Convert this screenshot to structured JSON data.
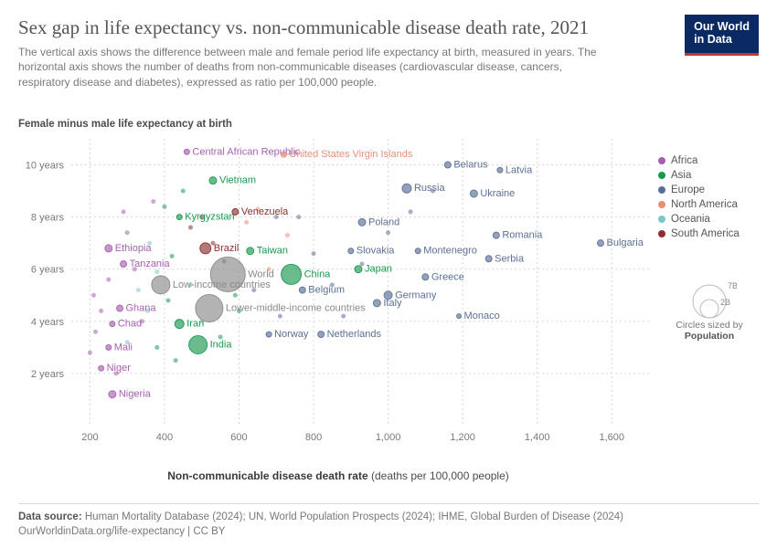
{
  "title": "Sex gap in life expectancy vs. non-communicable disease death rate, 2021",
  "subtitle": "The vertical axis shows the difference between male and female period life expectancy at birth, measured in years. The horizontal axis shows the number of deaths from non-communicable diseases (cardiovascular disease, cancers, respiratory disease and diabetes), expressed as ratio per 100,000 people.",
  "logo_line1": "Our World",
  "logo_line2": "in Data",
  "chart": {
    "type": "scatter",
    "y_axis_title": "Female minus male life expectancy at birth",
    "x_axis_title_bold": "Non-communicable disease death rate",
    "x_axis_title_rest": " (deaths per 100,000 people)",
    "xlim": [
      150,
      1700
    ],
    "ylim": [
      0,
      11
    ],
    "xticks": [
      200,
      400,
      600,
      800,
      1000,
      1200,
      1400,
      1600
    ],
    "xtick_labels": [
      "200",
      "400",
      "600",
      "800",
      "1,000",
      "1,200",
      "1,400",
      "1,600"
    ],
    "yticks": [
      2,
      4,
      6,
      8,
      10
    ],
    "ytick_labels": [
      "2 years",
      "4 years",
      "6 years",
      "8 years",
      "10 years"
    ],
    "grid_color": "#d6d6d6",
    "background": "#ffffff",
    "regions": {
      "Africa": "#a65fb0",
      "Asia": "#1a9850",
      "Europe": "#5b6f96",
      "North America": "#e58f79",
      "Oceania": "#7fc6c6",
      "South America": "#8b2f2f"
    },
    "entity_color": "#8a8a8a",
    "size_label1": "7B",
    "size_label2": "2B",
    "size_caption1": "Circles sized by",
    "size_caption2": "Population",
    "labeled_points": [
      {
        "label": "Central African Republic",
        "x": 460,
        "y": 10.5,
        "r": 3,
        "color": "#a65fb0",
        "anchor": "start"
      },
      {
        "label": "United States Virgin Islands",
        "x": 720,
        "y": 10.4,
        "r": 3,
        "color": "#e58f79",
        "anchor": "start"
      },
      {
        "label": "Vietnam",
        "x": 530,
        "y": 9.4,
        "r": 4,
        "color": "#1a9850",
        "anchor": "start"
      },
      {
        "label": "Belarus",
        "x": 1160,
        "y": 10.0,
        "r": 3.5,
        "color": "#5b6f96",
        "anchor": "start"
      },
      {
        "label": "Latvia",
        "x": 1300,
        "y": 9.8,
        "r": 3,
        "color": "#5b6f96",
        "anchor": "start"
      },
      {
        "label": "Russia",
        "x": 1050,
        "y": 9.1,
        "r": 5,
        "color": "#5b6f96",
        "anchor": "start"
      },
      {
        "label": "Ukraine",
        "x": 1230,
        "y": 8.9,
        "r": 4,
        "color": "#5b6f96",
        "anchor": "start"
      },
      {
        "label": "Kyrgyzstan",
        "x": 440,
        "y": 8.0,
        "r": 3,
        "color": "#1a9850",
        "anchor": "start"
      },
      {
        "label": "Venezuela",
        "x": 590,
        "y": 8.2,
        "r": 3.5,
        "color": "#8b2f2f",
        "anchor": "start"
      },
      {
        "label": "Poland",
        "x": 930,
        "y": 7.8,
        "r": 4,
        "color": "#5b6f96",
        "anchor": "start"
      },
      {
        "label": "Romania",
        "x": 1290,
        "y": 7.3,
        "r": 3.5,
        "color": "#5b6f96",
        "anchor": "start"
      },
      {
        "label": "Bulgaria",
        "x": 1570,
        "y": 7.0,
        "r": 3.5,
        "color": "#5b6f96",
        "anchor": "start"
      },
      {
        "label": "Ethiopia",
        "x": 250,
        "y": 6.8,
        "r": 4,
        "color": "#a65fb0",
        "anchor": "start"
      },
      {
        "label": "Brazil",
        "x": 510,
        "y": 6.8,
        "r": 6,
        "color": "#8b2f2f",
        "anchor": "start"
      },
      {
        "label": "Taiwan",
        "x": 630,
        "y": 6.7,
        "r": 4,
        "color": "#1a9850",
        "anchor": "start"
      },
      {
        "label": "Slovakia",
        "x": 900,
        "y": 6.7,
        "r": 3,
        "color": "#5b6f96",
        "anchor": "start"
      },
      {
        "label": "Montenegro",
        "x": 1080,
        "y": 6.7,
        "r": 3,
        "color": "#5b6f96",
        "anchor": "start"
      },
      {
        "label": "Serbia",
        "x": 1270,
        "y": 6.4,
        "r": 3.5,
        "color": "#5b6f96",
        "anchor": "start"
      },
      {
        "label": "Tanzania",
        "x": 290,
        "y": 6.2,
        "r": 3.5,
        "color": "#a65fb0",
        "anchor": "start"
      },
      {
        "label": "World",
        "x": 570,
        "y": 5.8,
        "r": 19,
        "color": "#8a8a8a",
        "anchor": "start"
      },
      {
        "label": "China",
        "x": 740,
        "y": 5.8,
        "r": 11,
        "color": "#1a9850",
        "anchor": "start"
      },
      {
        "label": "Japan",
        "x": 920,
        "y": 6.0,
        "r": 4,
        "color": "#1a9850",
        "anchor": "start"
      },
      {
        "label": "Greece",
        "x": 1100,
        "y": 5.7,
        "r": 3.5,
        "color": "#5b6f96",
        "anchor": "start"
      },
      {
        "label": "Low-income countries",
        "x": 390,
        "y": 5.4,
        "r": 10,
        "color": "#8a8a8a",
        "anchor": "start"
      },
      {
        "label": "Belgium",
        "x": 770,
        "y": 5.2,
        "r": 3.5,
        "color": "#5b6f96",
        "anchor": "start"
      },
      {
        "label": "Germany",
        "x": 1000,
        "y": 5.0,
        "r": 4.5,
        "color": "#5b6f96",
        "anchor": "start"
      },
      {
        "label": "Ghana",
        "x": 280,
        "y": 4.5,
        "r": 3.5,
        "color": "#a65fb0",
        "anchor": "start"
      },
      {
        "label": "Lower-middle-income countries",
        "x": 520,
        "y": 4.5,
        "r": 15,
        "color": "#8a8a8a",
        "anchor": "start"
      },
      {
        "label": "Italy",
        "x": 970,
        "y": 4.7,
        "r": 4,
        "color": "#5b6f96",
        "anchor": "start"
      },
      {
        "label": "Monaco",
        "x": 1190,
        "y": 4.2,
        "r": 2.5,
        "color": "#5b6f96",
        "anchor": "start"
      },
      {
        "label": "Chad",
        "x": 260,
        "y": 3.9,
        "r": 3,
        "color": "#a65fb0",
        "anchor": "start"
      },
      {
        "label": "Iran",
        "x": 440,
        "y": 3.9,
        "r": 5,
        "color": "#1a9850",
        "anchor": "start"
      },
      {
        "label": "India",
        "x": 490,
        "y": 3.1,
        "r": 10,
        "color": "#1a9850",
        "anchor": "start"
      },
      {
        "label": "Norway",
        "x": 680,
        "y": 3.5,
        "r": 3,
        "color": "#5b6f96",
        "anchor": "start"
      },
      {
        "label": "Netherlands",
        "x": 820,
        "y": 3.5,
        "r": 3.5,
        "color": "#5b6f96",
        "anchor": "start"
      },
      {
        "label": "Mali",
        "x": 250,
        "y": 3.0,
        "r": 3,
        "color": "#a65fb0",
        "anchor": "start"
      },
      {
        "label": "Niger",
        "x": 230,
        "y": 2.2,
        "r": 3,
        "color": "#a65fb0",
        "anchor": "start"
      },
      {
        "label": "Nigeria",
        "x": 260,
        "y": 1.2,
        "r": 4,
        "color": "#a65fb0",
        "anchor": "start"
      }
    ],
    "background_points": [
      {
        "x": 210,
        "y": 5.0,
        "r": 2.5,
        "c": "#a65fb0"
      },
      {
        "x": 230,
        "y": 4.4,
        "r": 2.5,
        "c": "#a65fb0"
      },
      {
        "x": 250,
        "y": 5.6,
        "r": 2.5,
        "c": "#a65fb0"
      },
      {
        "x": 300,
        "y": 7.4,
        "r": 2.5,
        "c": "#a65fb0"
      },
      {
        "x": 320,
        "y": 6.0,
        "r": 2.5,
        "c": "#a65fb0"
      },
      {
        "x": 340,
        "y": 4.0,
        "r": 2.5,
        "c": "#a65fb0"
      },
      {
        "x": 360,
        "y": 7.0,
        "r": 2.5,
        "c": "#7fc6c6"
      },
      {
        "x": 380,
        "y": 5.9,
        "r": 2.5,
        "c": "#7fc6c6"
      },
      {
        "x": 400,
        "y": 8.4,
        "r": 2.5,
        "c": "#1a9850"
      },
      {
        "x": 420,
        "y": 6.5,
        "r": 2.5,
        "c": "#1a9850"
      },
      {
        "x": 450,
        "y": 9.0,
        "r": 2.5,
        "c": "#1a9850"
      },
      {
        "x": 470,
        "y": 7.6,
        "r": 2.5,
        "c": "#8b2f2f"
      },
      {
        "x": 500,
        "y": 8.0,
        "r": 2.5,
        "c": "#8b2f2f"
      },
      {
        "x": 530,
        "y": 7.0,
        "r": 2.5,
        "c": "#8b2f2f"
      },
      {
        "x": 560,
        "y": 6.3,
        "r": 2.5,
        "c": "#1a9850"
      },
      {
        "x": 590,
        "y": 5.0,
        "r": 2.5,
        "c": "#1a9850"
      },
      {
        "x": 620,
        "y": 7.8,
        "r": 2.5,
        "c": "#e58f79"
      },
      {
        "x": 650,
        "y": 8.3,
        "r": 2.5,
        "c": "#e58f79"
      },
      {
        "x": 680,
        "y": 6.0,
        "r": 2.5,
        "c": "#e58f79"
      },
      {
        "x": 700,
        "y": 8.0,
        "r": 2.5,
        "c": "#5b6f96"
      },
      {
        "x": 730,
        "y": 7.3,
        "r": 2.5,
        "c": "#e58f79"
      },
      {
        "x": 760,
        "y": 8.0,
        "r": 2.5,
        "c": "#5b6f96"
      },
      {
        "x": 800,
        "y": 6.6,
        "r": 2.5,
        "c": "#5b6f96"
      },
      {
        "x": 850,
        "y": 5.4,
        "r": 2.5,
        "c": "#5b6f96"
      },
      {
        "x": 880,
        "y": 4.2,
        "r": 2.5,
        "c": "#5b6f96"
      },
      {
        "x": 930,
        "y": 6.2,
        "r": 2.5,
        "c": "#5b6f96"
      },
      {
        "x": 1000,
        "y": 7.4,
        "r": 2.5,
        "c": "#5b6f96"
      },
      {
        "x": 1060,
        "y": 8.2,
        "r": 2.5,
        "c": "#5b6f96"
      },
      {
        "x": 1120,
        "y": 9.0,
        "r": 2.5,
        "c": "#5b6f96"
      },
      {
        "x": 200,
        "y": 2.8,
        "r": 2.5,
        "c": "#a65fb0"
      },
      {
        "x": 215,
        "y": 3.6,
        "r": 2.5,
        "c": "#a65fb0"
      },
      {
        "x": 270,
        "y": 2.0,
        "r": 2.5,
        "c": "#a65fb0"
      },
      {
        "x": 300,
        "y": 3.2,
        "r": 2.5,
        "c": "#7fc6c6"
      },
      {
        "x": 330,
        "y": 5.2,
        "r": 2.5,
        "c": "#7fc6c6"
      },
      {
        "x": 355,
        "y": 4.4,
        "r": 2.5,
        "c": "#7fc6c6"
      },
      {
        "x": 380,
        "y": 3.0,
        "r": 2.5,
        "c": "#1a9850"
      },
      {
        "x": 410,
        "y": 4.8,
        "r": 2.5,
        "c": "#1a9850"
      },
      {
        "x": 430,
        "y": 2.5,
        "r": 2.5,
        "c": "#1a9850"
      },
      {
        "x": 470,
        "y": 5.4,
        "r": 2.5,
        "c": "#7fc6c6"
      },
      {
        "x": 500,
        "y": 4.0,
        "r": 2.5,
        "c": "#7fc6c6"
      },
      {
        "x": 550,
        "y": 3.4,
        "r": 2.5,
        "c": "#1a9850"
      },
      {
        "x": 600,
        "y": 4.4,
        "r": 2.5,
        "c": "#1a9850"
      },
      {
        "x": 640,
        "y": 5.2,
        "r": 2.5,
        "c": "#5b6f96"
      },
      {
        "x": 710,
        "y": 4.2,
        "r": 2.5,
        "c": "#5b6f96"
      },
      {
        "x": 290,
        "y": 8.2,
        "r": 2.5,
        "c": "#a65fb0"
      },
      {
        "x": 370,
        "y": 8.6,
        "r": 2.5,
        "c": "#a65fb0"
      }
    ]
  },
  "legend_items": [
    {
      "label": "Africa",
      "color": "#a65fb0"
    },
    {
      "label": "Asia",
      "color": "#1a9850"
    },
    {
      "label": "Europe",
      "color": "#5b6f96"
    },
    {
      "label": "North America",
      "color": "#e58f79"
    },
    {
      "label": "Oceania",
      "color": "#7fc6c6"
    },
    {
      "label": "South America",
      "color": "#8b2f2f"
    }
  ],
  "footer": {
    "source_label": "Data source:",
    "source_text": " Human Mortality Database (2024); UN, World Population Prospects (2024); IHME, Global Burden of Disease (2024)",
    "link_line": "OurWorldinData.org/life-expectancy | CC BY"
  }
}
